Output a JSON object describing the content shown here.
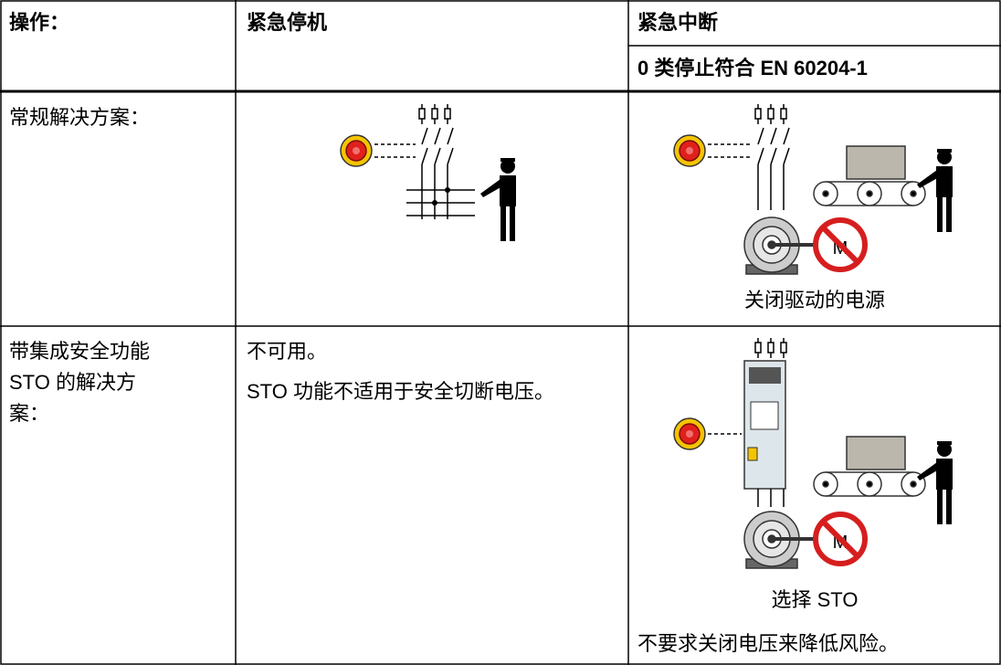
{
  "table": {
    "header": [
      "操作：",
      "紧急停机",
      "紧急中断"
    ],
    "subheader": "0 类停止符合 EN 60204-1",
    "rows": [
      {
        "label": "常规解决方案：",
        "caption": "关闭驱动的电源"
      },
      {
        "label": "带集成安全功能 STO 的解决方案：",
        "notes": [
          "不可用。",
          "STO 功能不适用于安全切断电压。"
        ],
        "caption": "选择 STO",
        "note": "不要求关闭电压来降低风险。"
      }
    ]
  }
}
